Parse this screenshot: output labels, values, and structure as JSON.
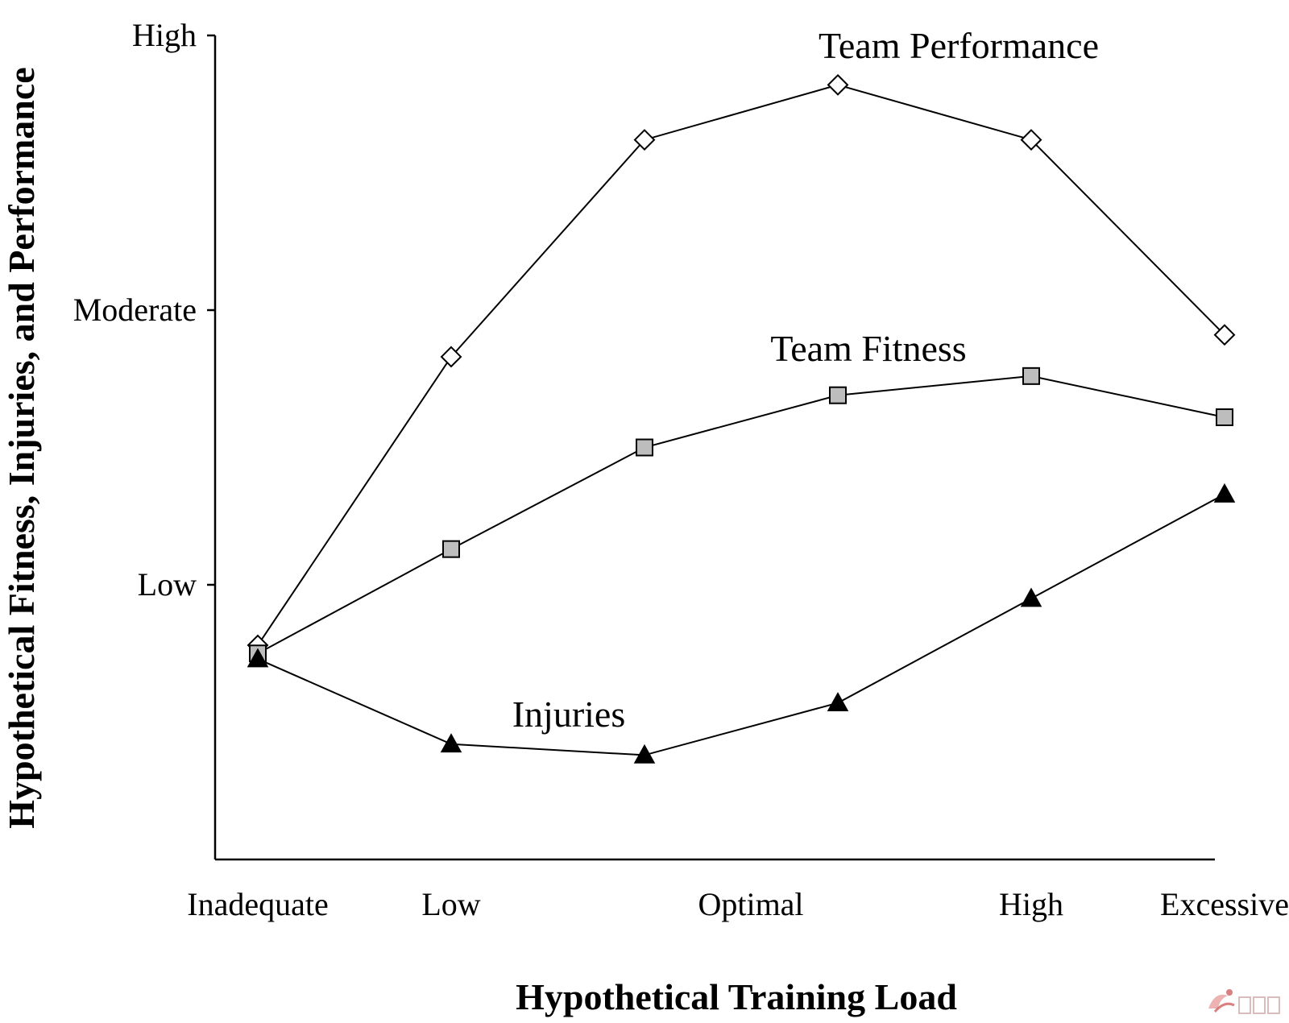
{
  "chart_data": {
    "type": "line",
    "title": "",
    "xlabel": "Hypothetical Training Load",
    "ylabel": "Hypothetical Fitness, Injuries, and Performance",
    "ylim": [
      0,
      3
    ],
    "y_ticks": [
      {
        "value": 1,
        "label": "Low"
      },
      {
        "value": 2,
        "label": "Moderate"
      },
      {
        "value": 3,
        "label": "High"
      }
    ],
    "x": [
      0,
      1,
      2,
      3,
      4,
      5
    ],
    "x_ticks": [
      {
        "value": 0,
        "label": "Inadequate"
      },
      {
        "value": 1,
        "label": "Low"
      },
      {
        "value": 2.55,
        "label": "Optimal"
      },
      {
        "value": 4,
        "label": "High"
      },
      {
        "value": 5,
        "label": "Excessive"
      }
    ],
    "grid": false,
    "series": [
      {
        "name": "Team Performance",
        "marker": "diamond",
        "values": [
          0.78,
          1.83,
          2.62,
          2.82,
          2.62,
          1.91
        ]
      },
      {
        "name": "Team Fitness",
        "marker": "square",
        "values": [
          0.75,
          1.13,
          1.5,
          1.69,
          1.76,
          1.61
        ]
      },
      {
        "name": "Injuries",
        "marker": "triangle",
        "values": [
          0.73,
          0.42,
          0.38,
          0.57,
          0.95,
          1.33
        ]
      }
    ]
  }
}
